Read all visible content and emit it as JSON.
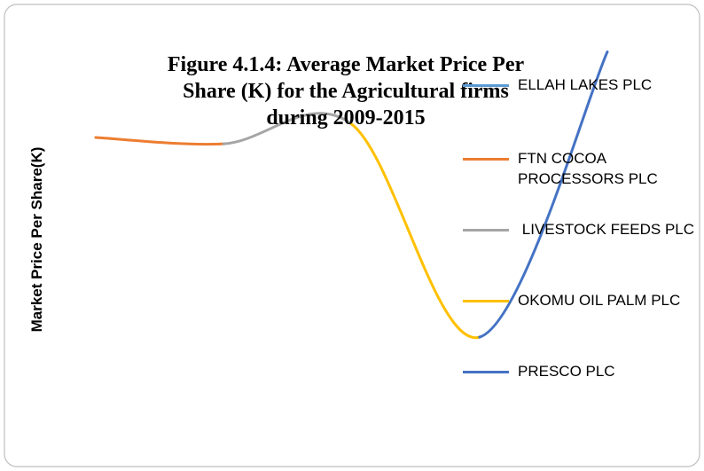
{
  "chart_data": {
    "type": "line",
    "title": "Figure 4.1.4: Average Market Price Per Share (K) for the Agricultural firms during 2009-2015",
    "y_label": "Market Price Per Share(K)",
    "categories": [
      "ELLAH LAKES PLC",
      "FTN COCOA PROCESSORS PLC",
      " LIVESTOCK FEEDS PLC",
      "OKOMU OIL PALM PLC",
      "PRESCO PLC"
    ],
    "colors": [
      "#5b9bd5",
      "#ed7d31",
      "#a5a5a5",
      "#ffc000",
      "#4472c4"
    ],
    "values": [
      75,
      73.3,
      78.6,
      21.4,
      98
    ],
    "ylim": [
      0,
      100
    ],
    "legend": "right"
  }
}
